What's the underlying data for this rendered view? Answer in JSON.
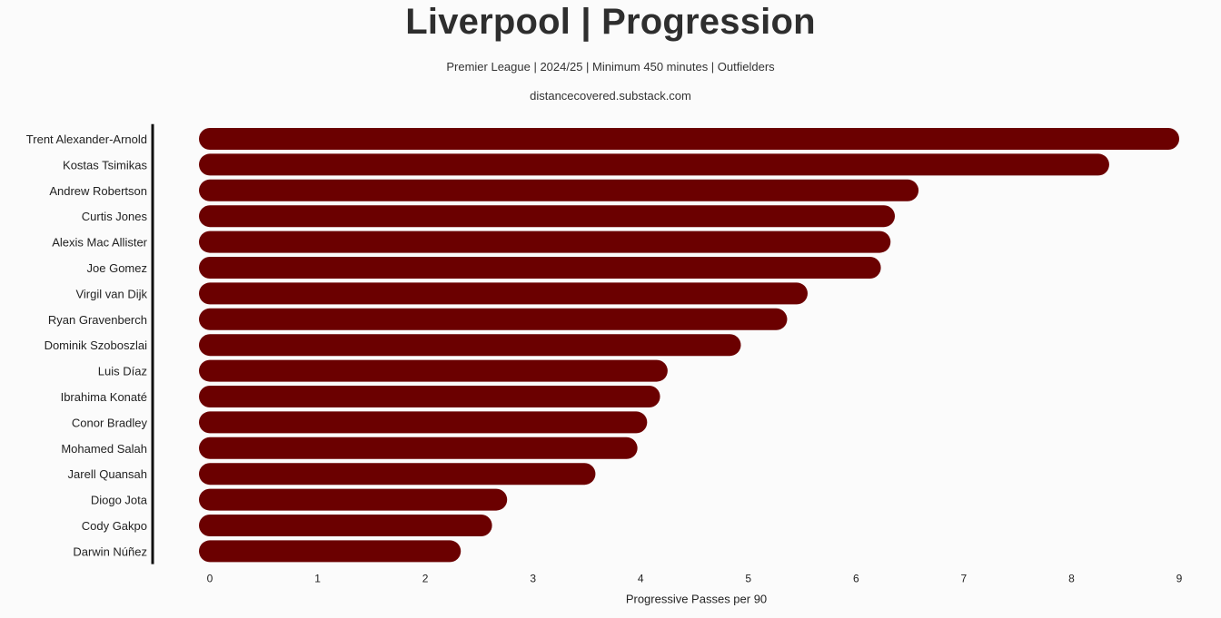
{
  "chart_data": {
    "type": "bar",
    "orientation": "horizontal",
    "title": "Liverpool | Progression",
    "subtitle": "Premier League | 2024/25 | Minimum 450 minutes | Outfielders",
    "source": "distancecovered.substack.com",
    "xlabel": "Progressive Passes per 90",
    "ylabel": "",
    "xlim": [
      0,
      9
    ],
    "xticks": [
      "0",
      "1",
      "2",
      "3",
      "4",
      "5",
      "6",
      "7",
      "8",
      "9"
    ],
    "bar_color": "#6b0000",
    "grid": false,
    "categories": [
      "Trent Alexander-Arnold",
      "Kostas Tsimikas",
      "Andrew Robertson",
      "Curtis Jones",
      "Alexis Mac Allister",
      "Joe Gomez",
      "Virgil van Dijk",
      "Ryan Gravenberch",
      "Dominik Szoboszlai",
      "Luis Díaz",
      "Ibrahima Konaté",
      "Conor Bradley",
      "Mohamed Salah",
      "Jarell Quansah",
      "Diogo Jota",
      "Cody Gakpo",
      "Darwin Núñez"
    ],
    "values": [
      9.0,
      8.35,
      6.58,
      6.36,
      6.32,
      6.23,
      5.55,
      5.36,
      4.93,
      4.25,
      4.18,
      4.06,
      3.97,
      3.58,
      2.76,
      2.62,
      2.33
    ]
  }
}
